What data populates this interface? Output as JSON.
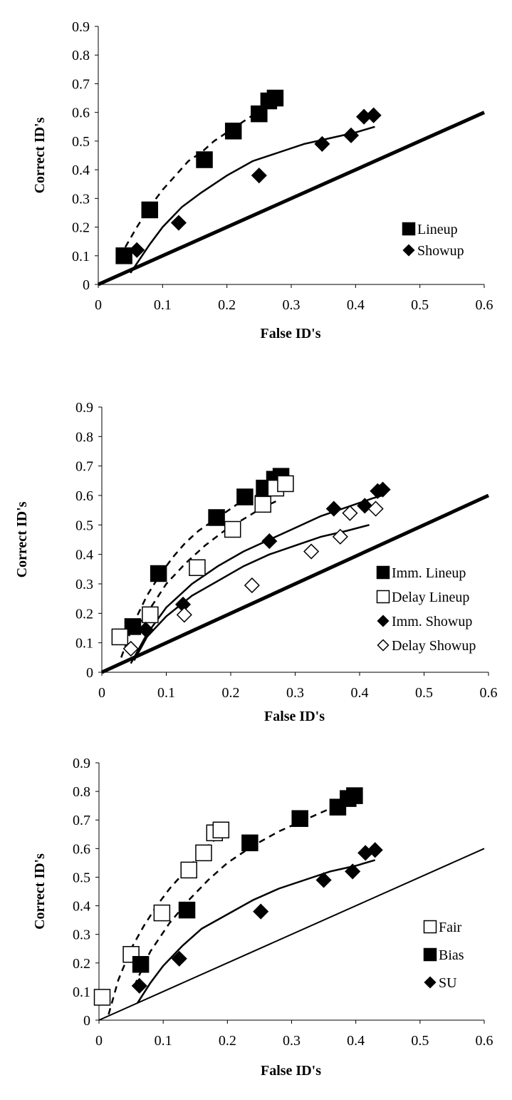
{
  "charts": [
    {
      "legend": [
        {
          "label": "Lineup",
          "marker": "filled-square"
        },
        {
          "label": "Showup",
          "marker": "filled-diamond"
        }
      ]
    },
    {
      "legend": [
        {
          "label": "Imm. Lineup",
          "marker": "filled-square"
        },
        {
          "label": "Delay Lineup",
          "marker": "open-square"
        },
        {
          "label": "Imm. Showup",
          "marker": "filled-diamond"
        },
        {
          "label": "Delay Showup",
          "marker": "open-diamond"
        }
      ]
    },
    {
      "legend": [
        {
          "label": "Fair",
          "marker": "open-square"
        },
        {
          "label": "Bias",
          "marker": "filled-square"
        },
        {
          "label": "SU",
          "marker": "filled-diamond"
        }
      ]
    }
  ],
  "chart_data": [
    {
      "type": "scatter",
      "xlabel": "False ID's",
      "ylabel": "Correct ID's",
      "xlim": [
        0,
        0.6
      ],
      "ylim": [
        0,
        0.9
      ],
      "xticks": [
        "0",
        "0.1",
        "0.2",
        "0.3",
        "0.4",
        "0.5",
        "0.6"
      ],
      "yticks": [
        "0",
        "0.1",
        "0.2",
        "0.3",
        "0.4",
        "0.5",
        "0.6",
        "0.7",
        "0.8",
        "0.9"
      ],
      "legend_position": "right",
      "grid": false,
      "series": [
        {
          "name": "Lineup",
          "marker": "filled-square",
          "x": [
            0.04,
            0.08,
            0.165,
            0.21,
            0.25,
            0.265,
            0.275
          ],
          "y": [
            0.1,
            0.26,
            0.435,
            0.535,
            0.595,
            0.64,
            0.65
          ]
        },
        {
          "name": "Showup",
          "marker": "filled-diamond",
          "x": [
            0.06,
            0.125,
            0.25,
            0.348,
            0.393,
            0.413,
            0.428
          ],
          "y": [
            0.12,
            0.215,
            0.38,
            0.49,
            0.52,
            0.585,
            0.59
          ]
        }
      ],
      "fit_curves": [
        {
          "style": "dashed",
          "x": [
            0.042,
            0.06,
            0.08,
            0.1,
            0.12,
            0.14,
            0.16,
            0.18,
            0.2,
            0.22,
            0.24,
            0.26,
            0.275
          ],
          "y": [
            0.13,
            0.2,
            0.27,
            0.33,
            0.38,
            0.43,
            0.46,
            0.5,
            0.53,
            0.56,
            0.59,
            0.61,
            0.63
          ]
        },
        {
          "style": "solid",
          "x": [
            0.05,
            0.08,
            0.1,
            0.13,
            0.16,
            0.2,
            0.24,
            0.28,
            0.32,
            0.36,
            0.4,
            0.43
          ],
          "y": [
            0.04,
            0.14,
            0.2,
            0.27,
            0.32,
            0.38,
            0.43,
            0.46,
            0.49,
            0.51,
            0.53,
            0.55
          ]
        },
        {
          "style": "thick",
          "x": [
            0,
            0.6
          ],
          "y": [
            0,
            0.6
          ]
        }
      ]
    },
    {
      "type": "scatter",
      "xlabel": "False ID's",
      "ylabel": "Correct ID's",
      "xlim": [
        0,
        0.6
      ],
      "ylim": [
        0,
        0.9
      ],
      "xticks": [
        "0",
        "0.1",
        "0.2",
        "0.3",
        "0.4",
        "0.5",
        "0.6"
      ],
      "yticks": [
        "0",
        "0.1",
        "0.2",
        "0.3",
        "0.4",
        "0.5",
        "0.6",
        "0.7",
        "0.8",
        "0.9"
      ],
      "legend_position": "right",
      "grid": false,
      "series": [
        {
          "name": "Imm. Lineup",
          "marker": "filled-square",
          "x": [
            0.048,
            0.088,
            0.178,
            0.222,
            0.252,
            0.268,
            0.278
          ],
          "y": [
            0.155,
            0.335,
            0.525,
            0.595,
            0.625,
            0.655,
            0.665
          ]
        },
        {
          "name": "Delay Lineup",
          "marker": "open-square",
          "x": [
            0.028,
            0.075,
            0.148,
            0.203,
            0.25,
            0.27,
            0.285
          ],
          "y": [
            0.12,
            0.195,
            0.355,
            0.485,
            0.57,
            0.625,
            0.64
          ]
        },
        {
          "name": "Imm. Showup",
          "marker": "filled-diamond",
          "x": [
            0.068,
            0.126,
            0.26,
            0.36,
            0.408,
            0.428,
            0.436
          ],
          "y": [
            0.145,
            0.23,
            0.445,
            0.555,
            0.565,
            0.615,
            0.62
          ]
        },
        {
          "name": "Delay Showup",
          "marker": "open-diamond",
          "x": [
            0.045,
            0.128,
            0.233,
            0.325,
            0.37,
            0.385,
            0.425
          ],
          "y": [
            0.08,
            0.195,
            0.295,
            0.41,
            0.46,
            0.54,
            0.555
          ]
        }
      ],
      "fit_curves": [
        {
          "style": "dashed",
          "x": [
            0.03,
            0.05,
            0.07,
            0.09,
            0.11,
            0.13,
            0.15,
            0.17,
            0.19,
            0.21,
            0.23,
            0.25,
            0.275
          ],
          "y": [
            0.05,
            0.17,
            0.26,
            0.33,
            0.39,
            0.44,
            0.48,
            0.51,
            0.54,
            0.57,
            0.59,
            0.61,
            0.64
          ]
        },
        {
          "style": "dashed",
          "x": [
            0.045,
            0.07,
            0.1,
            0.13,
            0.16,
            0.19,
            0.22,
            0.25,
            0.27
          ],
          "y": [
            0.13,
            0.2,
            0.3,
            0.37,
            0.43,
            0.48,
            0.52,
            0.56,
            0.58
          ]
        },
        {
          "style": "solid",
          "x": [
            0.045,
            0.07,
            0.1,
            0.14,
            0.18,
            0.22,
            0.26,
            0.3,
            0.34,
            0.38,
            0.42,
            0.435
          ],
          "y": [
            0.03,
            0.13,
            0.22,
            0.3,
            0.36,
            0.41,
            0.45,
            0.49,
            0.53,
            0.56,
            0.59,
            0.6
          ]
        },
        {
          "style": "solid",
          "x": [
            0.05,
            0.07,
            0.1,
            0.14,
            0.18,
            0.22,
            0.26,
            0.3,
            0.34,
            0.38,
            0.415
          ],
          "y": [
            0.04,
            0.12,
            0.19,
            0.26,
            0.31,
            0.36,
            0.4,
            0.43,
            0.46,
            0.48,
            0.5
          ]
        },
        {
          "style": "thick",
          "x": [
            0,
            0.6
          ],
          "y": [
            0,
            0.6
          ]
        }
      ]
    },
    {
      "type": "scatter",
      "xlabel": "False ID's",
      "ylabel": "Correct ID's",
      "xlim": [
        0,
        0.6
      ],
      "ylim": [
        0,
        0.9
      ],
      "xticks": [
        "0",
        "0.1",
        "0.2",
        "0.3",
        "0.4",
        "0.5",
        "0.6"
      ],
      "yticks": [
        "0",
        "0.1",
        "0.2",
        "0.3",
        "0.4",
        "0.5",
        "0.6",
        "0.7",
        "0.8",
        "0.9"
      ],
      "legend_position": "right",
      "grid": false,
      "series": [
        {
          "name": "Fair",
          "marker": "open-square",
          "x": [
            0.005,
            0.05,
            0.098,
            0.14,
            0.163,
            0.18,
            0.19
          ],
          "y": [
            0.08,
            0.23,
            0.375,
            0.525,
            0.585,
            0.655,
            0.665
          ]
        },
        {
          "name": "Bias",
          "marker": "filled-square",
          "x": [
            0.065,
            0.137,
            0.235,
            0.313,
            0.372,
            0.388,
            0.398
          ],
          "y": [
            0.195,
            0.385,
            0.62,
            0.705,
            0.745,
            0.775,
            0.785
          ]
        },
        {
          "name": "SU",
          "marker": "filled-diamond",
          "x": [
            0.063,
            0.125,
            0.252,
            0.35,
            0.395,
            0.415,
            0.43
          ],
          "y": [
            0.12,
            0.215,
            0.38,
            0.49,
            0.52,
            0.585,
            0.595
          ]
        }
      ],
      "fit_curves": [
        {
          "style": "dashed",
          "x": [
            0.015,
            0.03,
            0.05,
            0.07,
            0.09,
            0.11,
            0.13,
            0.15,
            0.17,
            0.19
          ],
          "y": [
            0.02,
            0.14,
            0.25,
            0.33,
            0.4,
            0.46,
            0.51,
            0.56,
            0.61,
            0.65
          ]
        },
        {
          "style": "dashed",
          "x": [
            0.055,
            0.08,
            0.11,
            0.14,
            0.17,
            0.2,
            0.24,
            0.28,
            0.32,
            0.36,
            0.4
          ],
          "y": [
            0.12,
            0.24,
            0.34,
            0.42,
            0.49,
            0.55,
            0.61,
            0.66,
            0.7,
            0.74,
            0.78
          ]
        },
        {
          "style": "solid",
          "x": [
            0.06,
            0.08,
            0.1,
            0.13,
            0.16,
            0.2,
            0.24,
            0.28,
            0.32,
            0.36,
            0.4,
            0.43
          ],
          "y": [
            0.06,
            0.13,
            0.19,
            0.26,
            0.32,
            0.37,
            0.42,
            0.46,
            0.49,
            0.52,
            0.54,
            0.56
          ]
        },
        {
          "style": "thin",
          "x": [
            0,
            0.6
          ],
          "y": [
            0,
            0.6
          ]
        }
      ]
    }
  ]
}
